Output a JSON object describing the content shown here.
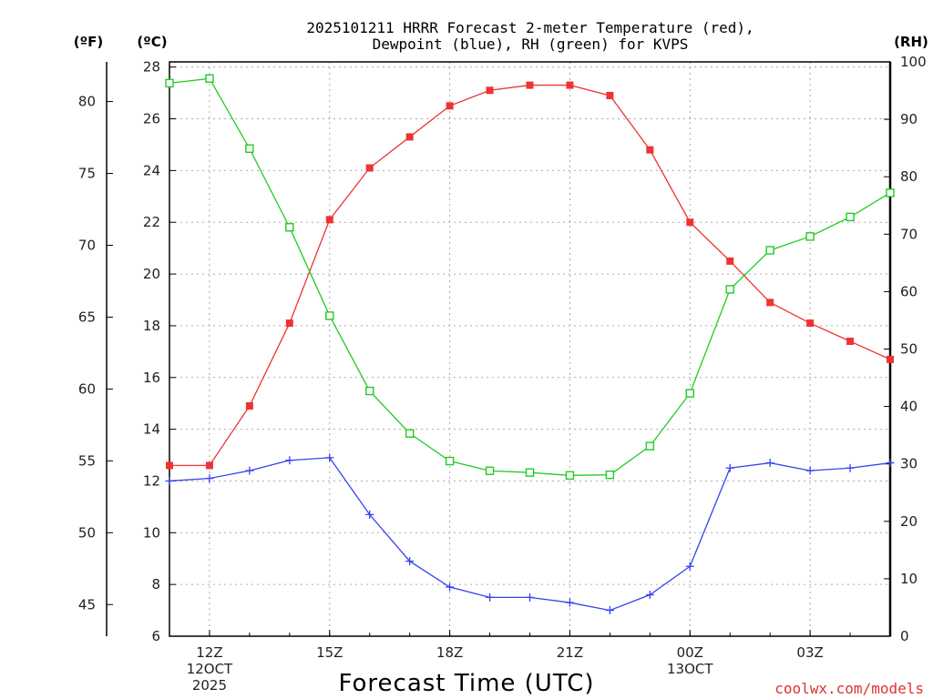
{
  "chart_data": {
    "type": "line",
    "title_line1": "2025101211 HRRR Forecast 2-meter Temperature (red),",
    "title_line2": "Dewpoint (blue), RH (green) for KVPS",
    "xlabel": "Forecast Time (UTC)",
    "units": {
      "fahrenheit": "(ºF)",
      "celsius": "(ºC)",
      "rh": "(RH)"
    },
    "credit": "coolwx.com/models",
    "x_hours": [
      11,
      12,
      13,
      14,
      15,
      16,
      17,
      18,
      19,
      20,
      21,
      22,
      23,
      24,
      25,
      26,
      27,
      28,
      29
    ],
    "xlim": [
      11,
      29
    ],
    "x_ticks": [
      {
        "hour": 12,
        "lines": [
          "12Z",
          "12OCT",
          "2025"
        ]
      },
      {
        "hour": 15,
        "lines": [
          "15Z"
        ]
      },
      {
        "hour": 18,
        "lines": [
          "18Z"
        ]
      },
      {
        "hour": 21,
        "lines": [
          "21Z"
        ]
      },
      {
        "hour": 24,
        "lines": [
          "00Z",
          "13OCT"
        ]
      },
      {
        "hour": 27,
        "lines": [
          "03Z"
        ]
      }
    ],
    "y_celsius": {
      "lim": [
        6,
        28.2
      ],
      "ticks": [
        "6",
        "8",
        "10",
        "12",
        "14",
        "16",
        "18",
        "20",
        "22",
        "24",
        "26",
        "28"
      ]
    },
    "y_fahrenheit": {
      "ticks": [
        "45",
        "50",
        "55",
        "60",
        "65",
        "70",
        "75",
        "80"
      ]
    },
    "y_rh": {
      "lim": [
        0,
        100
      ],
      "ticks": [
        "0",
        "10",
        "20",
        "30",
        "40",
        "50",
        "60",
        "70",
        "80",
        "90",
        "100"
      ]
    },
    "series": [
      {
        "name": "Temperature",
        "axis": "celsius",
        "color": "#ee3333",
        "marker": "filled-square",
        "values": [
          12.6,
          12.6,
          14.9,
          18.1,
          22.1,
          24.1,
          25.3,
          26.5,
          27.1,
          27.3,
          27.3,
          26.9,
          24.8,
          22.0,
          20.5,
          18.9,
          18.1,
          17.4,
          16.7
        ]
      },
      {
        "name": "Dewpoint",
        "axis": "celsius",
        "color": "#3344ee",
        "marker": "plus",
        "values": [
          12.0,
          12.1,
          12.4,
          12.8,
          12.9,
          10.7,
          8.9,
          7.9,
          7.5,
          7.5,
          7.3,
          7.0,
          7.6,
          8.7,
          12.5,
          12.7,
          12.4,
          12.5,
          12.7
        ]
      },
      {
        "name": "RH",
        "axis": "rh",
        "color": "#22cc22",
        "marker": "open-square",
        "values": [
          96.3,
          97.1,
          84.9,
          71.2,
          55.8,
          42.7,
          35.3,
          30.5,
          28.8,
          28.5,
          28.0,
          28.1,
          33.1,
          42.3,
          60.4,
          67.2,
          69.6,
          73.0,
          77.2
        ]
      }
    ]
  }
}
